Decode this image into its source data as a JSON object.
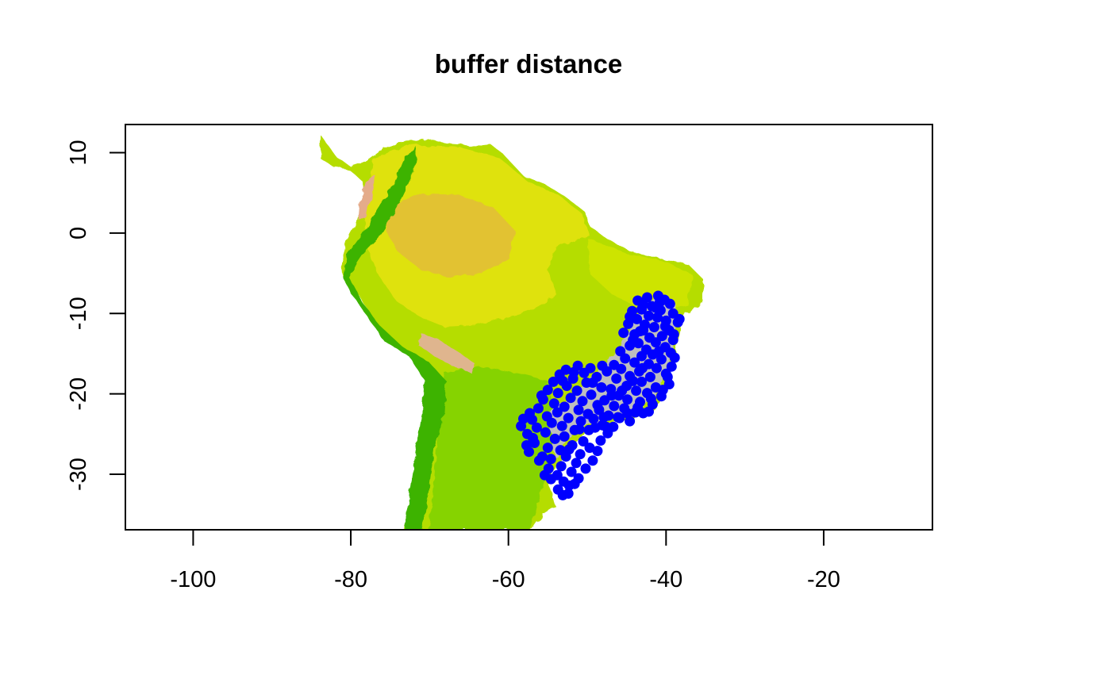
{
  "chart_data": {
    "type": "scatter",
    "title": "buffer distance",
    "xlabel": "",
    "ylabel": "",
    "xlim": [
      -108.6,
      -6.2
    ],
    "ylim": [
      -36.9,
      13.5
    ],
    "x_ticks": [
      -100,
      -80,
      -60,
      -40,
      -20
    ],
    "y_ticks": [
      10,
      0,
      -10,
      -20,
      -30
    ],
    "x_tick_labels": [
      "-100",
      "-80",
      "-60",
      "-40",
      "-20"
    ],
    "y_tick_labels": [
      "10",
      "0",
      "-10",
      "-20",
      "-30"
    ],
    "grid": false,
    "legend": "none",
    "raster": {
      "description_colors": [
        "#e8a888",
        "#e3bf35",
        "#dde30a",
        "#b8e000",
        "#7fd300",
        "#3fb800"
      ]
    },
    "buffer_color": "#bebebe",
    "series": [
      {
        "marker_color": "#0000ff",
        "points": [
          [
            -41.0,
            -7.8
          ],
          [
            -42.4,
            -8.0
          ],
          [
            -40.2,
            -8.3
          ],
          [
            -43.6,
            -8.4
          ],
          [
            -39.5,
            -8.8
          ],
          [
            -41.8,
            -9.1
          ],
          [
            -43.1,
            -9.5
          ],
          [
            -40.7,
            -9.6
          ],
          [
            -44.3,
            -9.7
          ],
          [
            -39.1,
            -10.0
          ],
          [
            -42.2,
            -10.3
          ],
          [
            -41.1,
            -10.5
          ],
          [
            -43.7,
            -10.7
          ],
          [
            -40.0,
            -10.9
          ],
          [
            -44.8,
            -11.3
          ],
          [
            -38.5,
            -11.1
          ],
          [
            -42.7,
            -11.4
          ],
          [
            -41.5,
            -11.7
          ],
          [
            -39.6,
            -12.1
          ],
          [
            -43.3,
            -12.2
          ],
          [
            -44.0,
            -12.6
          ],
          [
            -40.5,
            -12.8
          ],
          [
            -42.1,
            -13.0
          ],
          [
            -39.1,
            -13.3
          ],
          [
            -41.3,
            -13.6
          ],
          [
            -43.5,
            -13.7
          ],
          [
            -44.6,
            -14.0
          ],
          [
            -40.1,
            -14.2
          ],
          [
            -42.5,
            -14.5
          ],
          [
            -39.4,
            -14.9
          ],
          [
            -41.7,
            -15.1
          ],
          [
            -43.1,
            -15.3
          ],
          [
            -45.2,
            -15.6
          ],
          [
            -40.6,
            -15.7
          ],
          [
            -44.0,
            -16.1
          ],
          [
            -42.2,
            -16.3
          ],
          [
            -39.3,
            -16.6
          ],
          [
            -41.2,
            -16.8
          ],
          [
            -45.7,
            -16.9
          ],
          [
            -43.4,
            -17.2
          ],
          [
            -40.0,
            -17.5
          ],
          [
            -44.6,
            -17.8
          ],
          [
            -42.0,
            -17.9
          ],
          [
            -46.3,
            -18.1
          ],
          [
            -43.1,
            -18.5
          ],
          [
            -39.6,
            -18.8
          ],
          [
            -45.0,
            -19.0
          ],
          [
            -41.3,
            -19.2
          ],
          [
            -47.0,
            -19.4
          ],
          [
            -43.8,
            -19.6
          ],
          [
            -42.4,
            -19.9
          ],
          [
            -46.0,
            -20.2
          ],
          [
            -40.6,
            -20.3
          ],
          [
            -44.9,
            -20.7
          ],
          [
            -47.8,
            -20.8
          ],
          [
            -43.3,
            -21.0
          ],
          [
            -41.7,
            -21.3
          ],
          [
            -46.6,
            -21.5
          ],
          [
            -45.3,
            -21.8
          ],
          [
            -48.5,
            -22.0
          ],
          [
            -43.9,
            -22.3
          ],
          [
            -42.2,
            -22.2
          ],
          [
            -47.3,
            -22.7
          ],
          [
            -45.9,
            -23.0
          ],
          [
            -49.2,
            -23.1
          ],
          [
            -44.6,
            -23.4
          ],
          [
            -48.1,
            -23.9
          ],
          [
            -46.7,
            -24.1
          ],
          [
            -49.8,
            -24.5
          ],
          [
            -47.4,
            -24.9
          ],
          [
            -51.2,
            -16.5
          ],
          [
            -49.6,
            -16.8
          ],
          [
            -52.7,
            -17.0
          ],
          [
            -50.4,
            -17.4
          ],
          [
            -53.5,
            -17.6
          ],
          [
            -48.8,
            -17.9
          ],
          [
            -51.8,
            -18.1
          ],
          [
            -54.3,
            -18.5
          ],
          [
            -50.1,
            -18.6
          ],
          [
            -52.6,
            -19.0
          ],
          [
            -48.2,
            -19.2
          ],
          [
            -55.0,
            -19.5
          ],
          [
            -51.3,
            -19.6
          ],
          [
            -53.7,
            -19.9
          ],
          [
            -49.5,
            -20.1
          ],
          [
            -52.1,
            -20.5
          ],
          [
            -55.6,
            -20.7
          ],
          [
            -50.6,
            -20.9
          ],
          [
            -54.2,
            -21.2
          ],
          [
            -48.7,
            -21.4
          ],
          [
            -52.9,
            -21.6
          ],
          [
            -56.2,
            -21.8
          ],
          [
            -51.1,
            -22.0
          ],
          [
            -53.8,
            -22.3
          ],
          [
            -49.9,
            -22.5
          ],
          [
            -55.1,
            -22.8
          ],
          [
            -52.4,
            -23.0
          ],
          [
            -57.0,
            -23.2
          ],
          [
            -50.8,
            -23.4
          ],
          [
            -54.5,
            -23.6
          ],
          [
            -53.2,
            -24.0
          ],
          [
            -56.4,
            -24.2
          ],
          [
            -51.6,
            -24.5
          ],
          [
            -58.4,
            -24.0
          ],
          [
            -55.3,
            -24.8
          ],
          [
            -57.6,
            -25.0
          ],
          [
            -52.9,
            -25.3
          ],
          [
            -54.1,
            -25.6
          ],
          [
            -50.5,
            -25.9
          ],
          [
            -56.7,
            -26.1
          ],
          [
            -51.9,
            -26.4
          ],
          [
            -55.0,
            -26.7
          ],
          [
            -53.4,
            -27.0
          ],
          [
            -57.4,
            -27.2
          ],
          [
            -50.9,
            -27.5
          ],
          [
            -52.7,
            -27.8
          ],
          [
            -54.6,
            -28.1
          ],
          [
            -56.1,
            -28.3
          ],
          [
            -51.4,
            -28.6
          ],
          [
            -53.3,
            -29.0
          ],
          [
            -54.9,
            -29.3
          ],
          [
            -52.0,
            -29.7
          ],
          [
            -53.8,
            -30.1
          ],
          [
            -51.1,
            -30.5
          ],
          [
            -53.0,
            -30.9
          ],
          [
            -54.6,
            -30.6
          ],
          [
            -52.3,
            -31.4
          ],
          [
            -53.7,
            -31.9
          ],
          [
            -51.6,
            -31.2
          ],
          [
            -53.1,
            -32.6
          ],
          [
            -52.4,
            -32.4
          ],
          [
            -55.4,
            -30.1
          ],
          [
            -50.2,
            -29.3
          ],
          [
            -49.3,
            -28.3
          ],
          [
            -48.7,
            -27.1
          ],
          [
            -49.7,
            -26.7
          ],
          [
            -48.3,
            -25.8
          ],
          [
            -47.6,
            -24.1
          ],
          [
            -46.1,
            -22.9
          ],
          [
            -44.9,
            -22.4
          ],
          [
            -43.6,
            -21.7
          ],
          [
            -42.9,
            -22.4
          ],
          [
            -41.9,
            -20.6
          ],
          [
            -40.4,
            -19.5
          ],
          [
            -39.8,
            -17.9
          ],
          [
            -38.9,
            -15.5
          ],
          [
            -39.0,
            -12.6
          ],
          [
            -38.3,
            -10.7
          ],
          [
            -40.8,
            -8.6
          ],
          [
            -42.9,
            -8.9
          ],
          [
            -44.6,
            -10.4
          ],
          [
            -45.4,
            -12.4
          ],
          [
            -44.2,
            -13.3
          ],
          [
            -45.8,
            -14.7
          ],
          [
            -46.6,
            -16.4
          ],
          [
            -47.5,
            -17.2
          ],
          [
            -48.1,
            -16.5
          ],
          [
            -49.3,
            -18.6
          ],
          [
            -51.7,
            -17.3
          ],
          [
            -53.1,
            -18.4
          ],
          [
            -55.8,
            -20.2
          ],
          [
            -57.3,
            -22.4
          ],
          [
            -58.1,
            -23.1
          ],
          [
            -56.9,
            -25.5
          ],
          [
            -57.7,
            -26.4
          ],
          [
            -55.7,
            -27.8
          ],
          [
            -52.3,
            -26.9
          ],
          [
            -51.0,
            -24.4
          ],
          [
            -49.0,
            -24.2
          ],
          [
            -47.9,
            -22.9
          ],
          [
            -46.9,
            -20.2
          ],
          [
            -45.6,
            -19.6
          ],
          [
            -44.2,
            -18.4
          ],
          [
            -43.0,
            -16.8
          ],
          [
            -40.9,
            -14.7
          ],
          [
            -42.9,
            -12.1
          ],
          [
            -40.1,
            -11.6
          ],
          [
            -41.3,
            -9.3
          ]
        ]
      }
    ]
  }
}
